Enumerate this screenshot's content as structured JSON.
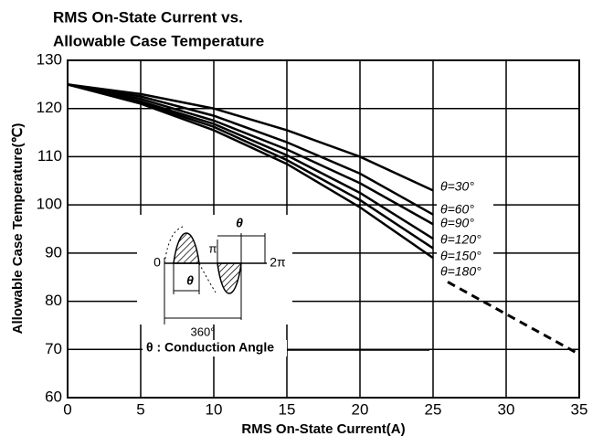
{
  "chart_data": {
    "type": "line",
    "title": [
      "RMS On-State Current vs.",
      "Allowable Case Temperature"
    ],
    "x_label": "RMS On-State Current(A)",
    "y_label": "Allowable Case Temperature(℃)",
    "xlim": [
      0,
      35
    ],
    "xticks": [
      0,
      5,
      10,
      15,
      20,
      25,
      30,
      35
    ],
    "ylim": [
      60,
      130
    ],
    "yticks": [
      60,
      70,
      80,
      90,
      100,
      110,
      120,
      130
    ],
    "grid": true,
    "series": [
      {
        "name": "θ=30°",
        "color": "#000000",
        "x": [
          0,
          5,
          10,
          15,
          20,
          25
        ],
        "values": [
          125,
          123,
          120,
          115.5,
          110,
          103
        ]
      },
      {
        "name": "θ=60°",
        "color": "#000000",
        "x": [
          0,
          5,
          10,
          15,
          20,
          25
        ],
        "values": [
          125,
          122.5,
          118.5,
          113,
          106.5,
          98
        ]
      },
      {
        "name": "θ=90°",
        "color": "#000000",
        "x": [
          0,
          5,
          10,
          15,
          20,
          25
        ],
        "values": [
          125,
          122,
          117.5,
          111.5,
          104.5,
          96
        ]
      },
      {
        "name": "θ=120°",
        "color": "#000000",
        "x": [
          0,
          5,
          10,
          15,
          20,
          25
        ],
        "values": [
          125,
          121.5,
          116.8,
          110.3,
          102.5,
          93
        ]
      },
      {
        "name": "θ=150°",
        "color": "#000000",
        "x": [
          0,
          5,
          10,
          15,
          20,
          25
        ],
        "values": [
          125,
          121.2,
          116.2,
          109.3,
          101,
          91
        ]
      },
      {
        "name": "θ=180°",
        "color": "#000000",
        "x": [
          0,
          5,
          10,
          15,
          20,
          25
        ],
        "values": [
          125,
          121,
          115.5,
          108.5,
          99.5,
          89
        ]
      },
      {
        "color": "#000000",
        "dashed": true,
        "x": [
          26,
          35
        ],
        "values": [
          84,
          69
        ]
      }
    ],
    "inset": {
      "zero": "0",
      "pi": "π",
      "two_pi": "2π",
      "theta_top": "θ",
      "theta_bottom": "θ",
      "period": "360°",
      "note": "θ : Conduction Angle"
    }
  }
}
